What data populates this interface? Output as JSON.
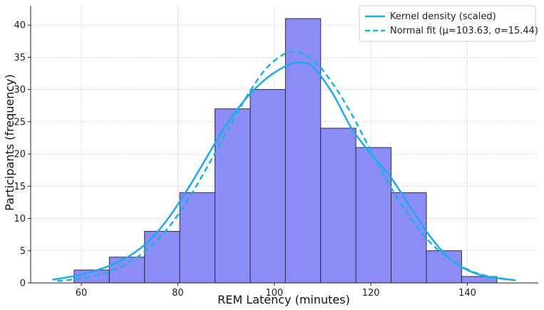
{
  "chart_data": {
    "type": "bar",
    "title": "",
    "xlabel": "REM Latency (minutes)",
    "ylabel": "Participants (frequency)",
    "xlim": [
      49.5,
      154.7
    ],
    "ylim": [
      0,
      43
    ],
    "xticks": [
      60,
      80,
      100,
      120,
      140
    ],
    "yticks": [
      0,
      5,
      10,
      15,
      20,
      25,
      30,
      35,
      40
    ],
    "grid": true,
    "legend_position": "top-right",
    "histogram": {
      "bin_edges": [
        58.5,
        65.8,
        73.1,
        80.4,
        87.7,
        95.0,
        102.3,
        109.6,
        116.9,
        124.2,
        131.5,
        138.8,
        146.1
      ],
      "counts": [
        2,
        4,
        8,
        14,
        27,
        30,
        41,
        24,
        21,
        14,
        5,
        1
      ],
      "color": "#8c8cf7"
    },
    "series": [
      {
        "name": "Kernel density (scaled)",
        "style": "solid",
        "color": "#1ea8ef",
        "x": [
          54,
          58,
          62,
          66,
          70,
          74,
          78,
          82,
          86,
          90,
          94,
          98,
          102,
          105,
          108,
          112,
          116,
          120,
          124,
          128,
          132,
          136,
          140,
          144,
          150
        ],
        "y": [
          0.5,
          1.0,
          1.7,
          2.7,
          4.2,
          6.5,
          10.0,
          14.5,
          19.5,
          24.5,
          28.5,
          31.5,
          33.5,
          34.2,
          33.5,
          29.5,
          24.0,
          20.0,
          16.5,
          12.0,
          7.5,
          4.0,
          2.0,
          1.0,
          0.4
        ]
      },
      {
        "name": "Normal fit (μ=103.63, σ=15.44)",
        "style": "dashed",
        "color": "#18b4dc",
        "x": [
          55,
          59,
          63,
          67,
          71,
          75,
          79,
          83,
          87,
          91,
          95,
          99,
          103.63,
          108,
          112,
          116,
          120,
          124,
          128,
          132,
          136,
          140,
          144,
          150
        ],
        "y": [
          0.3,
          0.6,
          1.1,
          2.1,
          3.7,
          6.1,
          9.5,
          14.0,
          19.2,
          24.6,
          29.8,
          33.8,
          35.9,
          34.6,
          31.0,
          26.2,
          20.5,
          15.0,
          10.3,
          6.5,
          3.9,
          2.1,
          1.1,
          0.4
        ]
      }
    ]
  }
}
